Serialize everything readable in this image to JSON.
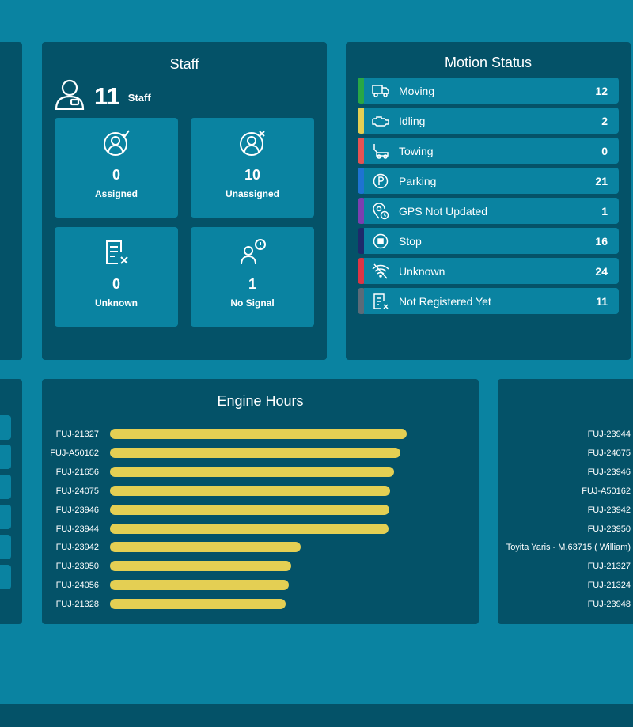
{
  "left_top": {
    "bars": [
      {
        "color": "#dc3545"
      },
      {
        "color": "#1e73d2"
      }
    ]
  },
  "staff": {
    "title": "Staff",
    "count": "11",
    "unit": "Staff",
    "tiles": [
      {
        "value": "0",
        "label": "Assigned",
        "icon": "user-check-icon"
      },
      {
        "value": "10",
        "label": "Unassigned",
        "icon": "user-x-icon"
      },
      {
        "value": "0",
        "label": "Unknown",
        "icon": "document-x-icon"
      },
      {
        "value": "1",
        "label": "No Signal",
        "icon": "user-alert-icon"
      }
    ]
  },
  "motion": {
    "title": "Motion Status",
    "rows": [
      {
        "label": "Moving",
        "count": "12",
        "color": "#28a745",
        "icon": "truck-icon"
      },
      {
        "label": "Idling",
        "count": "2",
        "color": "#e4cf53",
        "icon": "engine-icon"
      },
      {
        "label": "Towing",
        "count": "0",
        "color": "#e55353",
        "icon": "tow-truck-icon"
      },
      {
        "label": "Parking",
        "count": "21",
        "color": "#1e73d2",
        "icon": "parking-icon"
      },
      {
        "label": "GPS Not Updated",
        "count": "1",
        "color": "#7b3fb0",
        "icon": "gps-off-icon"
      },
      {
        "label": "Stop",
        "count": "16",
        "color": "#1d2a6b",
        "icon": "stop-icon"
      },
      {
        "label": "Unknown",
        "count": "24",
        "color": "#dc3545",
        "icon": "signal-off-icon"
      },
      {
        "label": "Not Registered Yet",
        "count": "11",
        "color": "#5b6b78",
        "icon": "document-x-icon"
      }
    ]
  },
  "engine_hours": {
    "title": "Engine Hours",
    "bar_color": "#e4cf53",
    "rows": [
      {
        "label": "FUJ-21327",
        "fraction": 1.0
      },
      {
        "label": "FUJ-A50162",
        "fraction": 0.979
      },
      {
        "label": "FUJ-21656",
        "fraction": 0.957
      },
      {
        "label": "FUJ-24075",
        "fraction": 0.944
      },
      {
        "label": "FUJ-23946",
        "fraction": 0.941
      },
      {
        "label": "FUJ-23944",
        "fraction": 0.939
      },
      {
        "label": "FUJ-23942",
        "fraction": 0.643
      },
      {
        "label": "FUJ-23950",
        "fraction": 0.611
      },
      {
        "label": "FUJ-24056",
        "fraction": 0.603
      },
      {
        "label": "FUJ-21328",
        "fraction": 0.592
      }
    ]
  },
  "right_list": {
    "labels": [
      "FUJ-23944",
      "FUJ-24075",
      "FUJ-23946",
      "FUJ-A50162",
      "FUJ-23942",
      "FUJ-23950",
      "Toyita Yaris - M.63715 ( William)",
      "FUJ-21327",
      "FUJ-21324",
      "FUJ-23948"
    ]
  }
}
